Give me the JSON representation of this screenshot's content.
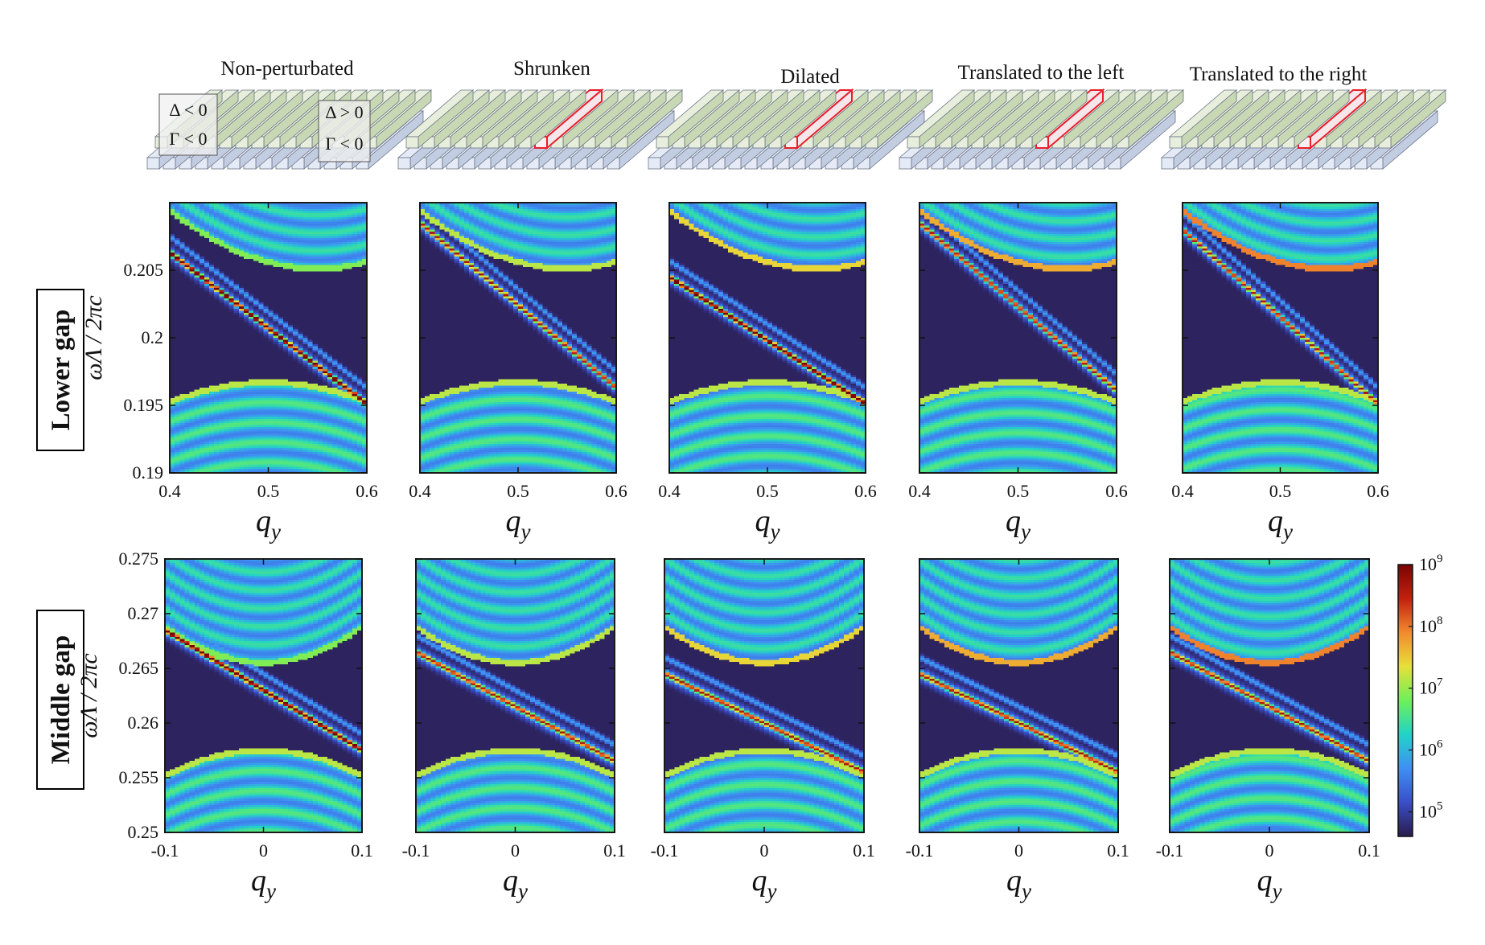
{
  "colors": {
    "background": "#2a1b4a",
    "frame": "#1a1a1a",
    "rod_green_top": "#e7efdc",
    "rod_green_side": "#c9d8b4",
    "rod_blue_top": "#e4eaf6",
    "rod_blue_side": "#c3cde2",
    "highlight": "#e8202a",
    "colormap": [
      "#2a1b4a",
      "#3a4ec8",
      "#3f8ff4",
      "#22d3c7",
      "#6df05a",
      "#e6e03a",
      "#f38a2e",
      "#c2200f",
      "#7a0403"
    ]
  },
  "row_labels": [
    "Lower gap",
    "Middle gap"
  ],
  "structures": [
    {
      "title": "Non-perturbated",
      "badges": [
        "Δ < 0",
        "Γ < 0",
        "Δ > 0",
        "Γ < 0"
      ]
    },
    {
      "title": "Shrunken"
    },
    {
      "title": "Dilated"
    },
    {
      "title": "Translated to the left"
    },
    {
      "title": "Translated to the right"
    }
  ],
  "colorbar": {
    "scale": "log",
    "ticks": [
      "10^9",
      "10^8",
      "10^7",
      "10^6",
      "10^5"
    ],
    "range": [
      40000,
      1000000000
    ]
  },
  "chart_data": [
    {
      "type": "heatmap",
      "row": "Lower gap",
      "panels": [
        "Non-perturbated",
        "Shrunken",
        "Dilated",
        "Translated to the left",
        "Translated to the right"
      ],
      "xlabel": "q_y",
      "ylabel": "ωΛ / 2πc",
      "xlim": [
        0.4,
        0.6
      ],
      "ylim": [
        0.19,
        0.21
      ],
      "xticks": [
        "0.4",
        "0.5",
        "0.6"
      ],
      "yticks": [
        "0.19",
        "0.195",
        "0.2",
        "0.205"
      ],
      "upper_band_min": {
        "q": 0.55,
        "freq": 0.2051
      },
      "lower_band_max": {
        "q": 0.5,
        "freq": 0.1967
      },
      "edge_state": [
        {
          "panel": "Non-perturbated",
          "q_start": 0.4,
          "freq_start": 0.2063,
          "q_end": 0.6,
          "freq_end": 0.1951
        },
        {
          "panel": "Shrunken",
          "q_start": 0.4,
          "freq_start": 0.2085,
          "q_end": 0.6,
          "freq_end": 0.1963
        },
        {
          "panel": "Dilated",
          "q_start": 0.4,
          "freq_start": 0.2045,
          "q_end": 0.6,
          "freq_end": 0.1951
        },
        {
          "panel": "Translated to the left",
          "q_start": 0.4,
          "freq_start": 0.2085,
          "q_end": 0.6,
          "freq_end": 0.1961
        },
        {
          "panel": "Translated to the right",
          "q_start": 0.4,
          "freq_start": 0.208,
          "q_end": 0.6,
          "freq_end": 0.1951
        }
      ]
    },
    {
      "type": "heatmap",
      "row": "Middle gap",
      "panels": [
        "Non-perturbated",
        "Shrunken",
        "Dilated",
        "Translated to the left",
        "Translated to the right"
      ],
      "xlabel": "q_y",
      "ylabel": "ωΛ / 2πc",
      "xlim": [
        -0.1,
        0.1
      ],
      "ylim": [
        0.25,
        0.275
      ],
      "xticks": [
        "-0.1",
        "0",
        "0.1"
      ],
      "yticks": [
        "0.25",
        "0.255",
        "0.26",
        "0.265",
        "0.27",
        "0.275"
      ],
      "upper_band_min": {
        "q": 0.0,
        "freq": 0.2655
      },
      "lower_band_max": {
        "q": 0.0,
        "freq": 0.2575
      },
      "edge_state": [
        {
          "panel": "Non-perturbated",
          "q_start": -0.1,
          "freq_start": 0.2685,
          "q_end": 0.1,
          "freq_end": 0.2575
        },
        {
          "panel": "Shrunken",
          "q_start": -0.1,
          "freq_start": 0.2665,
          "q_end": 0.1,
          "freq_end": 0.2565
        },
        {
          "panel": "Dilated",
          "q_start": -0.1,
          "freq_start": 0.2645,
          "q_end": 0.1,
          "freq_end": 0.2555
        },
        {
          "panel": "Translated to the left",
          "q_start": -0.1,
          "freq_start": 0.2645,
          "q_end": 0.1,
          "freq_end": 0.2555
        },
        {
          "panel": "Translated to the right",
          "q_start": -0.1,
          "freq_start": 0.2665,
          "q_end": 0.1,
          "freq_end": 0.2565
        }
      ]
    }
  ]
}
